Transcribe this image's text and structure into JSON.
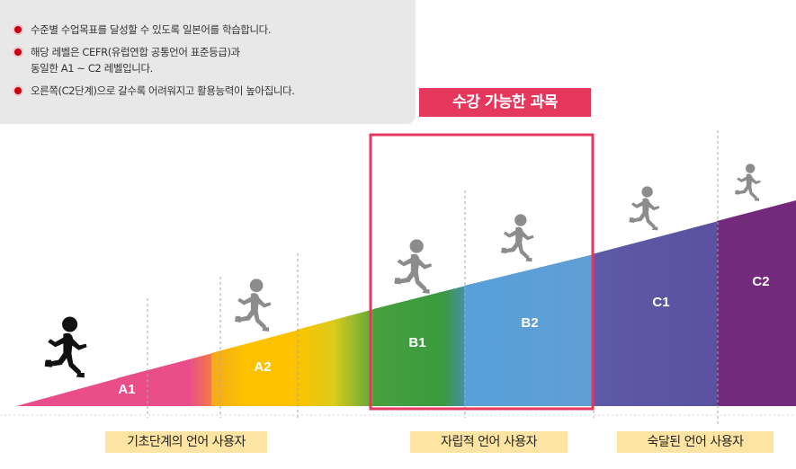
{
  "info": {
    "items": [
      "수준별 수업목표를 달성할 수 있도록 일본어를 학습합니다.",
      "해당 레벨은 CEFR(유럽연합 공통언어 표준등급)과\n동일한 A1 ~ C2 레벨입니다.",
      "오른쪽(C2단계)으로 갈수록 어려워지고 활용능력이 높아집니다."
    ]
  },
  "badge": {
    "label": "수강 가능한 과목"
  },
  "levels": {
    "a1": "A1",
    "a2": "A2",
    "b1": "B1",
    "b2": "B2",
    "c1": "C1",
    "c2": "C2"
  },
  "categories": {
    "basic": "기초단계의 언어 사용자",
    "independent": "자립적 언어 사용자",
    "proficient": "숙달된 언어 사용자"
  },
  "colors": {
    "a1": "#ea4e8a",
    "a2": "#fcc200",
    "b1": "#3b9a3e",
    "b2": "#5b9fd6",
    "c1": "#5b55a4",
    "c2": "#732a7c",
    "highlight": "#e6375c",
    "runner": "#8c8c8c"
  }
}
